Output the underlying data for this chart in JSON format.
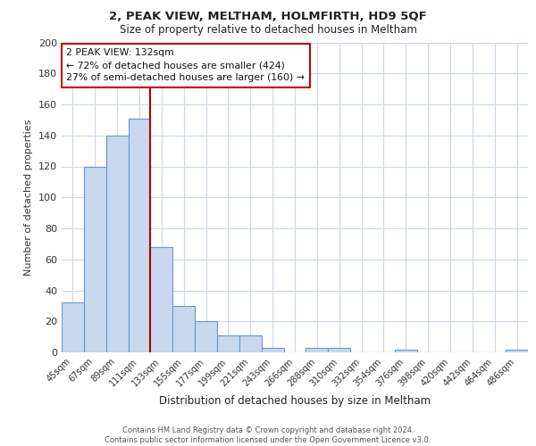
{
  "title": "2, PEAK VIEW, MELTHAM, HOLMFIRTH, HD9 5QF",
  "subtitle": "Size of property relative to detached houses in Meltham",
  "xlabel": "Distribution of detached houses by size in Meltham",
  "ylabel": "Number of detached properties",
  "bar_labels": [
    "45sqm",
    "67sqm",
    "89sqm",
    "111sqm",
    "133sqm",
    "155sqm",
    "177sqm",
    "199sqm",
    "221sqm",
    "243sqm",
    "266sqm",
    "288sqm",
    "310sqm",
    "332sqm",
    "354sqm",
    "376sqm",
    "398sqm",
    "420sqm",
    "442sqm",
    "464sqm",
    "486sqm"
  ],
  "bar_values": [
    32,
    120,
    140,
    151,
    68,
    30,
    20,
    11,
    11,
    3,
    0,
    3,
    3,
    0,
    0,
    2,
    0,
    0,
    0,
    0,
    2
  ],
  "bar_color": "#c8d8ee",
  "bar_edge_color": "#6699cc",
  "highlight_line_index": 4,
  "highlight_line_color": "#aa0000",
  "annotation_text": "2 PEAK VIEW: 132sqm\n← 72% of detached houses are smaller (424)\n27% of semi-detached houses are larger (160) →",
  "annotation_box_color": "#ffffff",
  "annotation_box_edge": "#cc0000",
  "ylim": [
    0,
    200
  ],
  "yticks": [
    0,
    20,
    40,
    60,
    80,
    100,
    120,
    140,
    160,
    180,
    200
  ],
  "footer_text": "Contains HM Land Registry data © Crown copyright and database right 2024.\nContains public sector information licensed under the Open Government Licence v3.0.",
  "bg_color": "#ffffff",
  "grid_color": "#ccd9e8"
}
